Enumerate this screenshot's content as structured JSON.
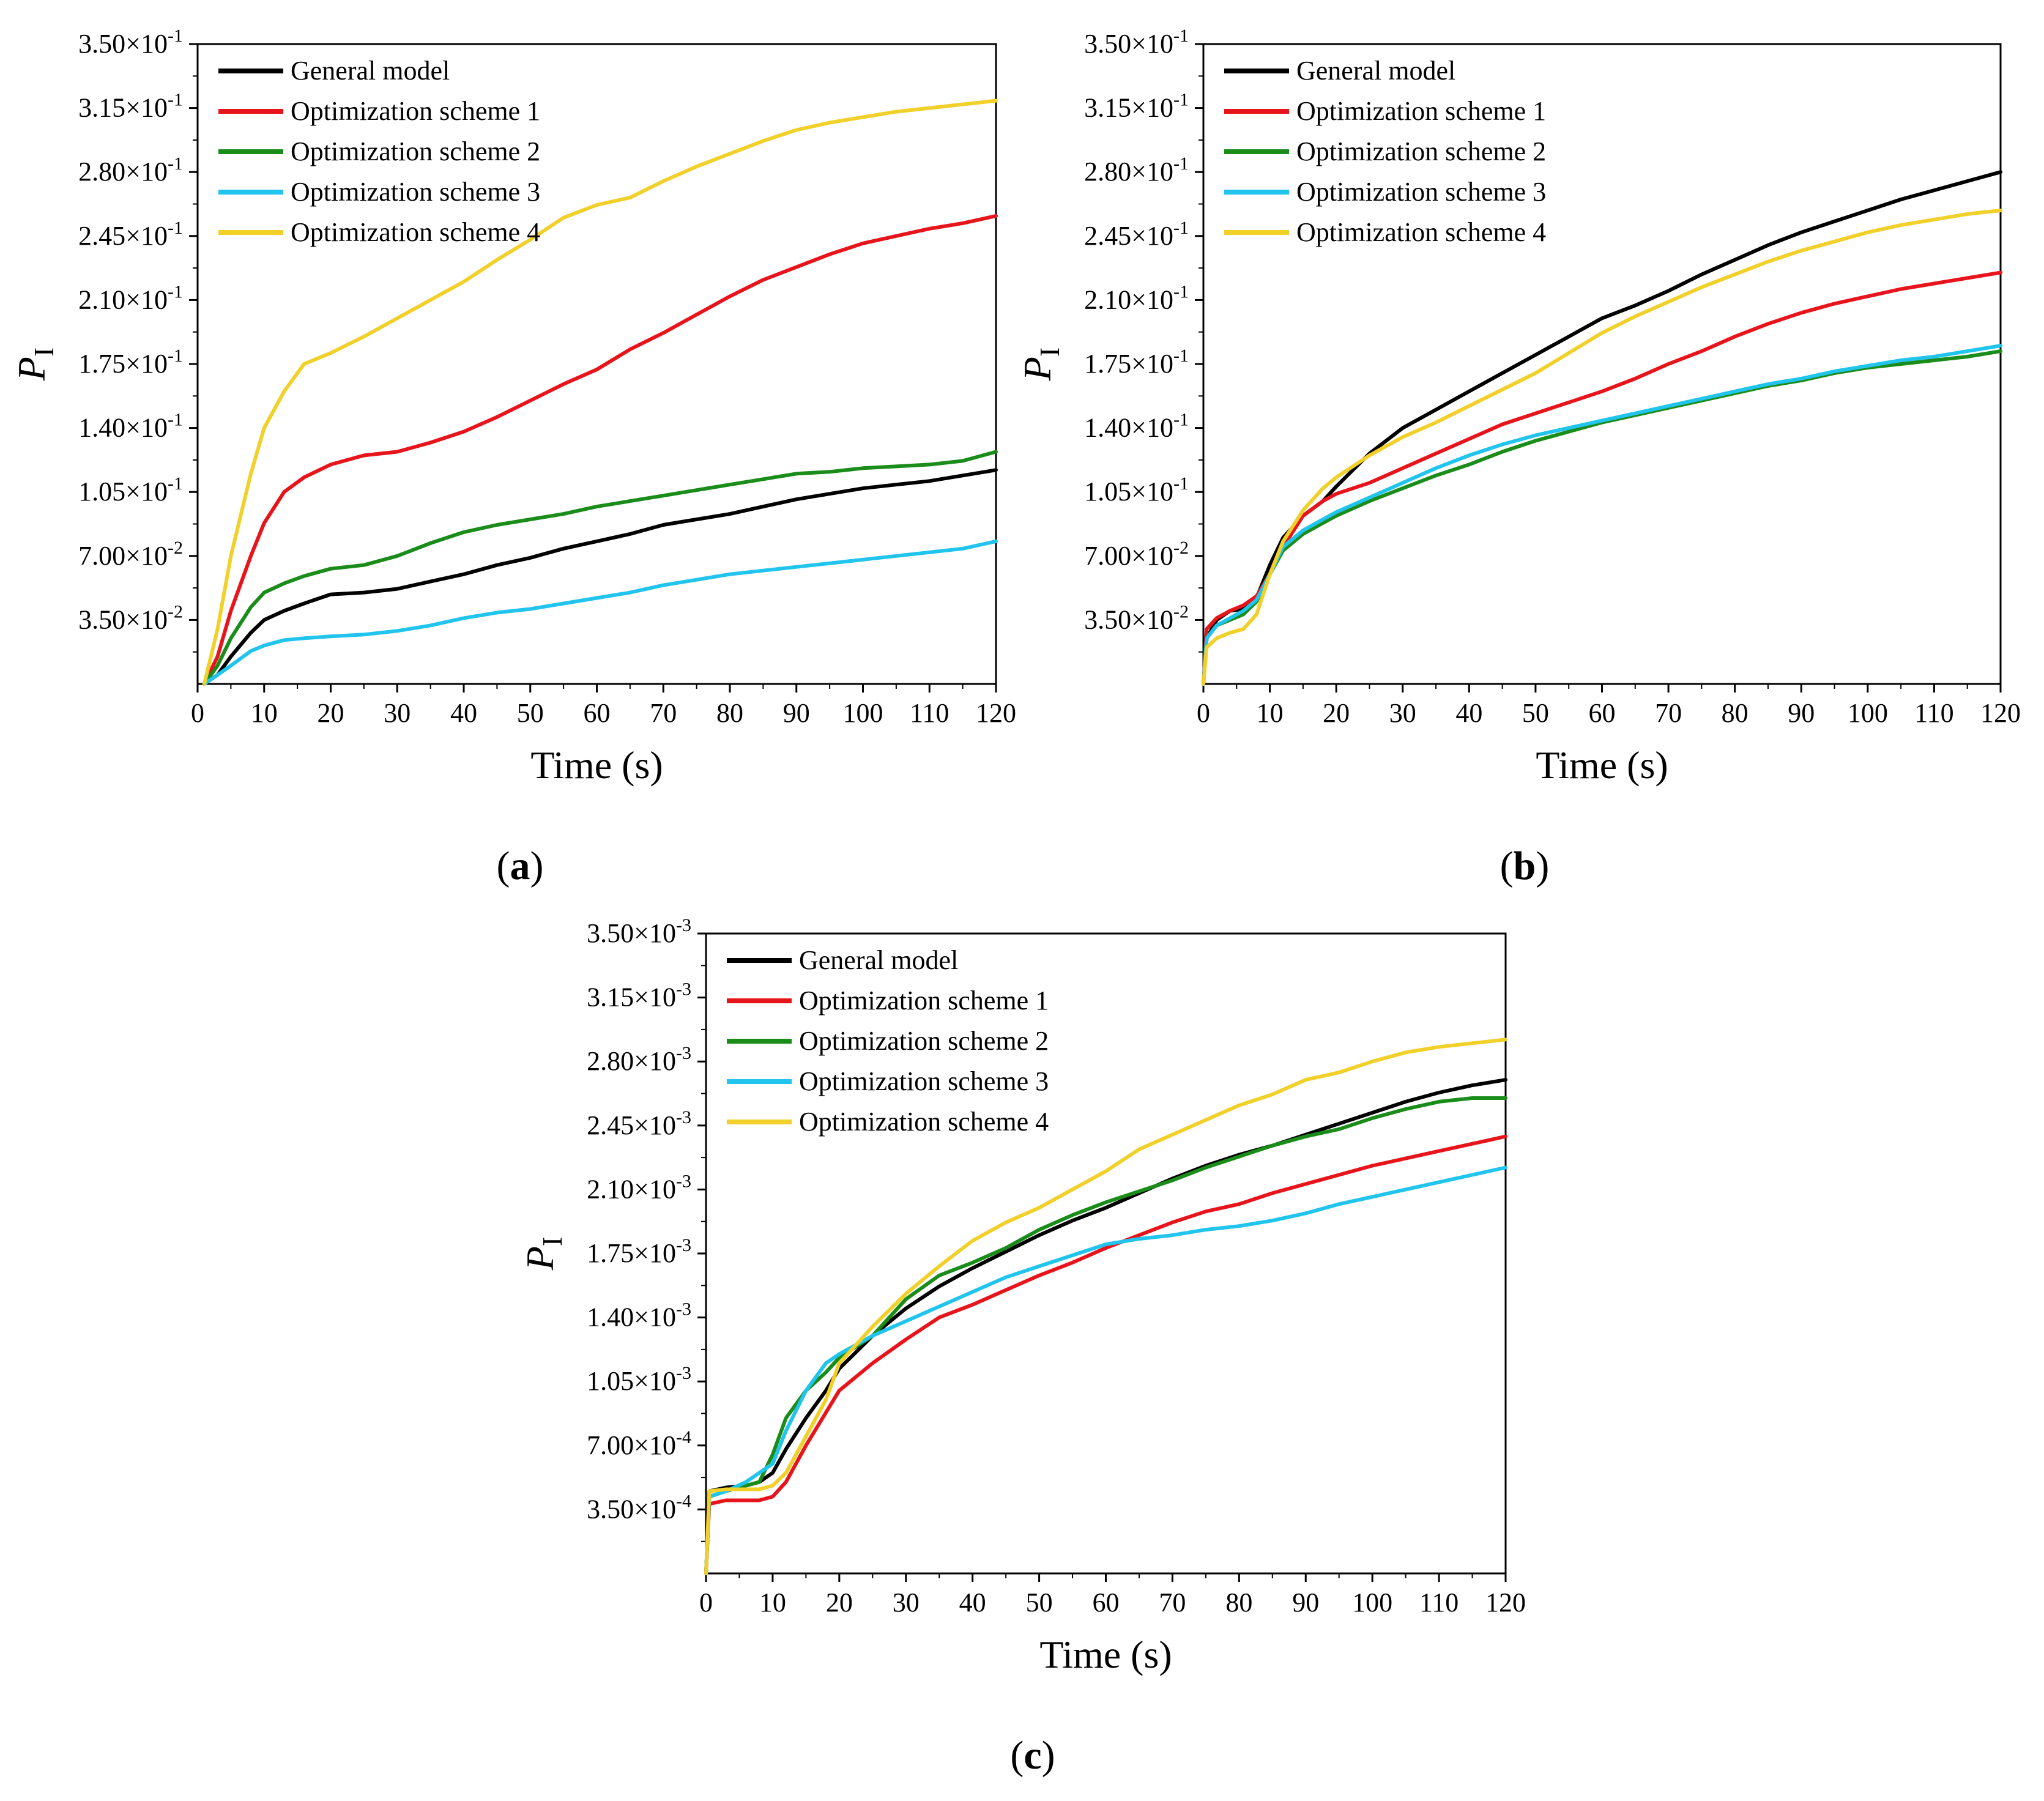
{
  "series_names": [
    "General model",
    "Optimization scheme 1",
    "Optimization scheme 2",
    "Optimization scheme 3",
    "Optimization scheme 4"
  ],
  "colors": [
    "#000000",
    "#e8141c",
    "#1a8c1a",
    "#21c4ec",
    "#f2d02a"
  ],
  "chart_data": [
    {
      "type": "line",
      "panel": "(a)",
      "panel_letter": "a",
      "xlabel": "Time (s)",
      "ylabel": "P",
      "ylabel_sub": "I",
      "xlim": [
        0,
        120
      ],
      "ylim": [
        0,
        0.35
      ],
      "x_ticks": [
        0,
        10,
        20,
        30,
        40,
        50,
        60,
        70,
        80,
        90,
        100,
        110,
        120
      ],
      "y_ticks": [
        0.035,
        0.07,
        0.105,
        0.14,
        0.175,
        0.21,
        0.245,
        0.28,
        0.315,
        0.35
      ],
      "y_tick_labels": [
        {
          "m": "3.50×10",
          "e": "-2"
        },
        {
          "m": "7.00×10",
          "e": "-2"
        },
        {
          "m": "1.05×10",
          "e": "-1"
        },
        {
          "m": "1.40×10",
          "e": "-1"
        },
        {
          "m": "1.75×10",
          "e": "-1"
        },
        {
          "m": "2.10×10",
          "e": "-1"
        },
        {
          "m": "2.45×10",
          "e": "-1"
        },
        {
          "m": "2.80×10",
          "e": "-1"
        },
        {
          "m": "3.15×10",
          "e": "-1"
        },
        {
          "m": "3.50×10",
          "e": "-1"
        }
      ],
      "x": [
        1,
        3,
        5,
        8,
        10,
        13,
        16,
        20,
        25,
        30,
        35,
        40,
        45,
        50,
        55,
        60,
        65,
        70,
        75,
        80,
        85,
        90,
        95,
        100,
        105,
        110,
        115,
        120
      ],
      "series": [
        {
          "name": "General model",
          "values": [
            0,
            0.005,
            0.015,
            0.028,
            0.035,
            0.04,
            0.044,
            0.049,
            0.05,
            0.052,
            0.056,
            0.06,
            0.065,
            0.069,
            0.074,
            0.078,
            0.082,
            0.087,
            0.09,
            0.093,
            0.097,
            0.101,
            0.104,
            0.107,
            0.109,
            0.111,
            0.114,
            0.117
          ]
        },
        {
          "name": "Optimization scheme 1",
          "values": [
            0,
            0.015,
            0.04,
            0.07,
            0.088,
            0.105,
            0.113,
            0.12,
            0.125,
            0.127,
            0.132,
            0.138,
            0.146,
            0.155,
            0.164,
            0.172,
            0.183,
            0.192,
            0.202,
            0.212,
            0.221,
            0.228,
            0.235,
            0.241,
            0.245,
            0.249,
            0.252,
            0.256
          ]
        },
        {
          "name": "Optimization scheme 2",
          "values": [
            0,
            0.01,
            0.025,
            0.042,
            0.05,
            0.055,
            0.059,
            0.063,
            0.065,
            0.07,
            0.077,
            0.083,
            0.087,
            0.09,
            0.093,
            0.097,
            0.1,
            0.103,
            0.106,
            0.109,
            0.112,
            0.115,
            0.116,
            0.118,
            0.119,
            0.12,
            0.122,
            0.127
          ]
        },
        {
          "name": "Optimization scheme 3",
          "values": [
            0,
            0.005,
            0.01,
            0.018,
            0.021,
            0.024,
            0.025,
            0.026,
            0.027,
            0.029,
            0.032,
            0.036,
            0.039,
            0.041,
            0.044,
            0.047,
            0.05,
            0.054,
            0.057,
            0.06,
            0.062,
            0.064,
            0.066,
            0.068,
            0.07,
            0.072,
            0.074,
            0.078
          ]
        },
        {
          "name": "Optimization scheme 4",
          "values": [
            0,
            0.03,
            0.07,
            0.115,
            0.14,
            0.16,
            0.175,
            0.181,
            0.19,
            0.2,
            0.21,
            0.22,
            0.232,
            0.243,
            0.255,
            0.262,
            0.266,
            0.275,
            0.283,
            0.29,
            0.297,
            0.303,
            0.307,
            0.31,
            0.313,
            0.315,
            0.317,
            0.319
          ]
        }
      ]
    },
    {
      "type": "line",
      "panel": "(b)",
      "panel_letter": "b",
      "xlabel": "Time (s)",
      "ylabel": "P",
      "ylabel_sub": "I",
      "xlim": [
        0,
        120
      ],
      "ylim": [
        0,
        0.35
      ],
      "x_ticks": [
        0,
        10,
        20,
        30,
        40,
        50,
        60,
        70,
        80,
        90,
        100,
        110,
        120
      ],
      "y_ticks": [
        0.035,
        0.07,
        0.105,
        0.14,
        0.175,
        0.21,
        0.245,
        0.28,
        0.315,
        0.35
      ],
      "y_tick_labels": [
        {
          "m": "3.50×10",
          "e": "-2"
        },
        {
          "m": "7.00×10",
          "e": "-2"
        },
        {
          "m": "1.05×10",
          "e": "-1"
        },
        {
          "m": "1.40×10",
          "e": "-1"
        },
        {
          "m": "1.75×10",
          "e": "-1"
        },
        {
          "m": "2.10×10",
          "e": "-1"
        },
        {
          "m": "2.45×10",
          "e": "-1"
        },
        {
          "m": "2.80×10",
          "e": "-1"
        },
        {
          "m": "3.15×10",
          "e": "-1"
        },
        {
          "m": "3.50×10",
          "e": "-1"
        }
      ],
      "x": [
        0,
        0.5,
        2,
        4,
        6,
        8,
        10,
        12,
        15,
        18,
        20,
        25,
        30,
        35,
        40,
        45,
        50,
        55,
        60,
        65,
        70,
        75,
        80,
        85,
        90,
        95,
        100,
        105,
        110,
        115,
        120
      ],
      "series": [
        {
          "name": "General model",
          "values": [
            0,
            0.025,
            0.035,
            0.04,
            0.041,
            0.047,
            0.065,
            0.08,
            0.092,
            0.1,
            0.108,
            0.126,
            0.14,
            0.15,
            0.16,
            0.17,
            0.18,
            0.19,
            0.2,
            0.207,
            0.215,
            0.224,
            0.232,
            0.24,
            0.247,
            0.253,
            0.259,
            0.265,
            0.27,
            0.275,
            0.28
          ]
        },
        {
          "name": "Optimization scheme 1",
          "values": [
            0,
            0.03,
            0.036,
            0.04,
            0.043,
            0.048,
            0.06,
            0.075,
            0.092,
            0.1,
            0.104,
            0.11,
            0.118,
            0.126,
            0.134,
            0.142,
            0.148,
            0.154,
            0.16,
            0.167,
            0.175,
            0.182,
            0.19,
            0.197,
            0.203,
            0.208,
            0.212,
            0.216,
            0.219,
            0.222,
            0.225
          ]
        },
        {
          "name": "Optimization scheme 2",
          "values": [
            0,
            0.025,
            0.032,
            0.035,
            0.038,
            0.045,
            0.06,
            0.073,
            0.082,
            0.088,
            0.092,
            0.1,
            0.107,
            0.114,
            0.12,
            0.127,
            0.133,
            0.138,
            0.143,
            0.147,
            0.151,
            0.155,
            0.159,
            0.163,
            0.166,
            0.17,
            0.173,
            0.175,
            0.177,
            0.179,
            0.182
          ]
        },
        {
          "name": "Optimization scheme 3",
          "values": [
            0,
            0.025,
            0.032,
            0.036,
            0.04,
            0.046,
            0.06,
            0.075,
            0.084,
            0.09,
            0.094,
            0.102,
            0.11,
            0.118,
            0.125,
            0.131,
            0.136,
            0.14,
            0.144,
            0.148,
            0.152,
            0.156,
            0.16,
            0.164,
            0.167,
            0.171,
            0.174,
            0.177,
            0.179,
            0.182,
            0.185
          ]
        },
        {
          "name": "Optimization scheme 4",
          "values": [
            0,
            0.02,
            0.025,
            0.028,
            0.03,
            0.038,
            0.06,
            0.078,
            0.095,
            0.107,
            0.113,
            0.125,
            0.135,
            0.143,
            0.152,
            0.161,
            0.17,
            0.181,
            0.192,
            0.201,
            0.209,
            0.217,
            0.224,
            0.231,
            0.237,
            0.242,
            0.247,
            0.251,
            0.254,
            0.257,
            0.259
          ]
        }
      ]
    },
    {
      "type": "line",
      "panel": "(c)",
      "panel_letter": "c",
      "xlabel": "Time (s)",
      "ylabel": "P",
      "ylabel_sub": "I",
      "xlim": [
        0,
        120
      ],
      "ylim": [
        0,
        0.0035
      ],
      "x_ticks": [
        0,
        10,
        20,
        30,
        40,
        50,
        60,
        70,
        80,
        90,
        100,
        110,
        120
      ],
      "y_ticks": [
        0.00035,
        0.0007,
        0.00105,
        0.0014,
        0.00175,
        0.0021,
        0.00245,
        0.0028,
        0.00315,
        0.0035
      ],
      "y_tick_labels": [
        {
          "m": "3.50×10",
          "e": "-4"
        },
        {
          "m": "7.00×10",
          "e": "-4"
        },
        {
          "m": "1.05×10",
          "e": "-3"
        },
        {
          "m": "1.40×10",
          "e": "-3"
        },
        {
          "m": "1.75×10",
          "e": "-3"
        },
        {
          "m": "2.10×10",
          "e": "-3"
        },
        {
          "m": "2.45×10",
          "e": "-3"
        },
        {
          "m": "2.80×10",
          "e": "-3"
        },
        {
          "m": "3.15×10",
          "e": "-3"
        },
        {
          "m": "3.50×10",
          "e": "-3"
        }
      ],
      "x": [
        0,
        0.5,
        3,
        6,
        8,
        10,
        12,
        15,
        18,
        20,
        25,
        30,
        35,
        40,
        45,
        50,
        55,
        60,
        65,
        70,
        75,
        80,
        85,
        90,
        95,
        100,
        105,
        110,
        115,
        120
      ],
      "series": [
        {
          "name": "General model",
          "values": [
            0,
            0.00045,
            0.00047,
            0.00048,
            0.0005,
            0.00055,
            0.00068,
            0.00085,
            0.001,
            0.00112,
            0.0013,
            0.00145,
            0.00157,
            0.00167,
            0.00176,
            0.00185,
            0.00193,
            0.002,
            0.00208,
            0.00216,
            0.00223,
            0.00229,
            0.00234,
            0.0024,
            0.00246,
            0.00252,
            0.00258,
            0.00263,
            0.00267,
            0.0027
          ]
        },
        {
          "name": "Optimization scheme 1",
          "values": [
            0,
            0.00038,
            0.0004,
            0.0004,
            0.0004,
            0.00042,
            0.0005,
            0.0007,
            0.00088,
            0.001,
            0.00115,
            0.00128,
            0.0014,
            0.00147,
            0.00155,
            0.00163,
            0.0017,
            0.00178,
            0.00185,
            0.00192,
            0.00198,
            0.00202,
            0.00208,
            0.00213,
            0.00218,
            0.00223,
            0.00227,
            0.00231,
            0.00235,
            0.00239
          ]
        },
        {
          "name": "Optimization scheme 2",
          "values": [
            0,
            0.00042,
            0.00045,
            0.00048,
            0.0005,
            0.00065,
            0.00085,
            0.001,
            0.0011,
            0.00118,
            0.0013,
            0.0015,
            0.00163,
            0.0017,
            0.00178,
            0.00188,
            0.00196,
            0.00203,
            0.00209,
            0.00215,
            0.00222,
            0.00228,
            0.00234,
            0.00239,
            0.00243,
            0.00249,
            0.00254,
            0.00258,
            0.0026,
            0.0026
          ]
        },
        {
          "name": "Optimization scheme 3",
          "values": [
            0,
            0.00042,
            0.00045,
            0.0005,
            0.00055,
            0.0006,
            0.00078,
            0.001,
            0.00115,
            0.0012,
            0.0013,
            0.00138,
            0.00146,
            0.00154,
            0.00162,
            0.00168,
            0.00174,
            0.0018,
            0.00183,
            0.00185,
            0.00188,
            0.0019,
            0.00193,
            0.00197,
            0.00202,
            0.00206,
            0.0021,
            0.00214,
            0.00218,
            0.00222
          ]
        },
        {
          "name": "Optimization scheme 4",
          "values": [
            0,
            0.00045,
            0.00046,
            0.00046,
            0.00046,
            0.00048,
            0.00055,
            0.00075,
            0.00095,
            0.00115,
            0.00135,
            0.00153,
            0.00168,
            0.00182,
            0.00192,
            0.002,
            0.0021,
            0.0022,
            0.00232,
            0.0024,
            0.00248,
            0.00256,
            0.00262,
            0.0027,
            0.00274,
            0.0028,
            0.00285,
            0.00288,
            0.0029,
            0.00292
          ]
        }
      ]
    }
  ]
}
